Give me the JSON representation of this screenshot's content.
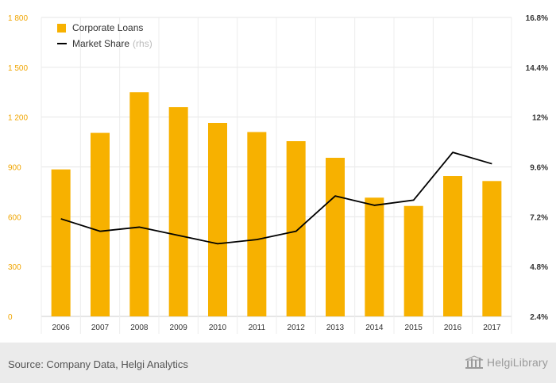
{
  "chart_data": {
    "type": "bar",
    "categories": [
      "2006",
      "2007",
      "2008",
      "2009",
      "2010",
      "2011",
      "2012",
      "2013",
      "2014",
      "2015",
      "2016",
      "2017"
    ],
    "series": [
      {
        "name": "Corporate Loans",
        "type": "bar",
        "axis": "left",
        "color": "#f7b100",
        "values": [
          885,
          1105,
          1350,
          1260,
          1165,
          1110,
          1055,
          955,
          715,
          665,
          845,
          815
        ]
      },
      {
        "name": "Market Share",
        "suffix": "(rhs)",
        "type": "line",
        "axis": "right",
        "color": "#000000",
        "values": [
          7.1,
          6.5,
          6.7,
          6.3,
          5.9,
          6.1,
          6.5,
          8.2,
          7.75,
          8.0,
          10.3,
          9.75
        ]
      }
    ],
    "y_left": {
      "min": 0,
      "max": 1800,
      "ticks": [
        "0",
        "300",
        "600",
        "900",
        "1 200",
        "1 500",
        "1 800"
      ]
    },
    "y_right": {
      "min": 2.4,
      "max": 16.8,
      "ticks": [
        "2.4%",
        "4.8%",
        "7.2%",
        "9.6%",
        "12%",
        "14.4%",
        "16.8%"
      ]
    },
    "grid": true,
    "legend_position": "top-left"
  },
  "footer": {
    "source": "Source: Company Data, Helgi Analytics",
    "logo_text": "HelgiLibrary"
  }
}
